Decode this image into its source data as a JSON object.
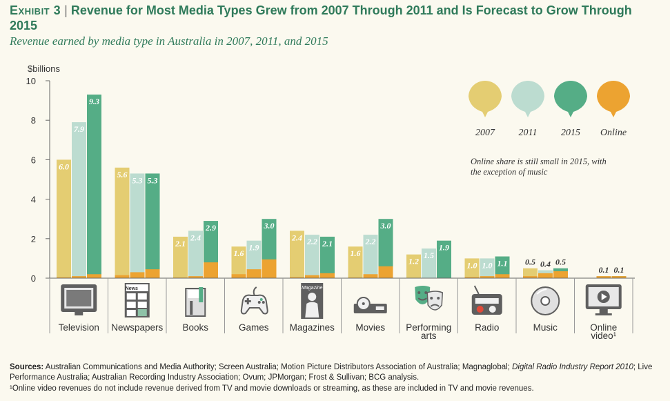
{
  "header": {
    "exhibit": "Exhibit 3",
    "separator": "|",
    "title": "Revenue for Most Media Types Grew from 2007 Through 2011 and Is Forecast to Grow Through 2015",
    "subtitle": "Revenue earned by media type in Australia in 2007, 2011, and 2015"
  },
  "colors": {
    "y2007": "#e4cd72",
    "y2011": "#bcdcd0",
    "y2015": "#55ad86",
    "online": "#eca331",
    "axis": "#666666",
    "icon": "#5f5f5f"
  },
  "chart_data": {
    "type": "bar",
    "unit_label": "$billions",
    "ylim": [
      0,
      10
    ],
    "yticks": [
      0,
      2,
      4,
      6,
      8,
      10
    ],
    "categories": [
      "Television",
      "Newspapers",
      "Books",
      "Games",
      "Magazines",
      "Movies",
      "Performing arts",
      "Radio",
      "Music",
      "Online video¹"
    ],
    "series": [
      {
        "name": "2007",
        "values": [
          6.0,
          5.6,
          2.1,
          1.6,
          2.4,
          1.6,
          1.2,
          1.0,
          0.5,
          null
        ]
      },
      {
        "name": "2011",
        "values": [
          7.9,
          5.3,
          2.4,
          1.9,
          2.2,
          2.2,
          1.5,
          1.0,
          0.4,
          0.1
        ]
      },
      {
        "name": "2015",
        "values": [
          9.3,
          5.3,
          2.9,
          3.0,
          2.1,
          3.0,
          1.9,
          1.1,
          0.5,
          0.1
        ]
      }
    ],
    "data_labels": [
      [
        "6.0",
        "7.9",
        "9.3"
      ],
      [
        "5.6",
        "5.3",
        "5.3"
      ],
      [
        "2.1",
        "2.4",
        "2.9"
      ],
      [
        "1.6",
        "1.9",
        "3.0"
      ],
      [
        "2.4",
        "2.2",
        "2.1"
      ],
      [
        "1.6",
        "2.2",
        "3.0"
      ],
      [
        "1.2",
        "1.5",
        "1.9"
      ],
      [
        "1.0",
        "1.0",
        "1.1"
      ],
      [
        "0.5",
        "0.4",
        "0.5"
      ],
      [
        "",
        "0.1",
        "0.1"
      ]
    ],
    "online": {
      "name": "Online",
      "values": [
        [
          0.04,
          0.1,
          0.2
        ],
        [
          0.15,
          0.3,
          0.45
        ],
        [
          0.03,
          0.1,
          0.8
        ],
        [
          0.2,
          0.45,
          0.95
        ],
        [
          0.05,
          0.15,
          0.25
        ],
        [
          0.03,
          0.2,
          0.6
        ],
        [
          0.0,
          0.0,
          0.0
        ],
        [
          0.05,
          0.1,
          0.2
        ],
        [
          0.1,
          0.25,
          0.35
        ],
        [
          0.0,
          0.1,
          0.1
        ]
      ]
    },
    "legend": [
      "2007",
      "2011",
      "2015",
      "Online"
    ],
    "legend_position": "top-right",
    "annotation": [
      "Online share is still small in 2015, with",
      "the exception of music"
    ],
    "icons": [
      "tv-icon",
      "newspaper-icon",
      "book-icon",
      "gamepad-icon",
      "magazine-icon",
      "projector-icon",
      "theater-masks-icon",
      "radio-icon",
      "cd-icon",
      "monitor-play-icon"
    ],
    "icon_texts": {
      "newspapers": "News",
      "magazines": "Magazine"
    }
  },
  "footer": {
    "sources_label": "Sources:",
    "sources_text_1": "Australian Communications and Media Authority; Screen Australia; Motion Picture Distributors Association of Australia; Magnaglobal;",
    "sources_italic": "Digital Radio Industry Report 2010",
    "sources_text_2": "; Live Performance Australia; Australian Recording Industry Association; Ovum; JPMorgan; Frost & Sullivan; BCG analysis.",
    "footnote": "¹Online video revenues do not include revenue derived from TV and movie downloads or streaming, as these are included in TV and movie revenues."
  }
}
